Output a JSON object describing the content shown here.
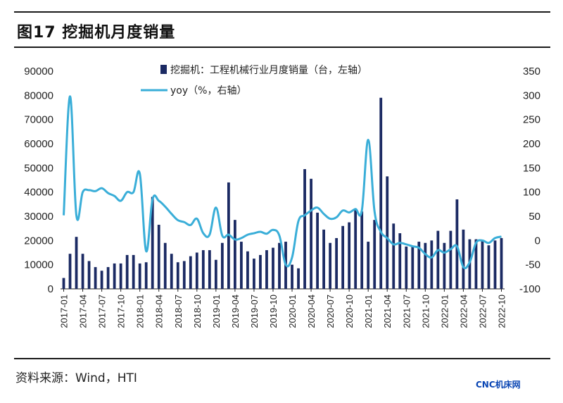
{
  "header": {
    "title": "图17 挖掘机月度销量"
  },
  "footer": {
    "source": "资料来源：Wind，HTI",
    "watermark": "CNC机床网"
  },
  "colors": {
    "bar": "#1b2a63",
    "line": "#3aaed8"
  },
  "chart_data": {
    "type": "bar+line",
    "title": "图17 挖掘机月度销量",
    "x": [
      "2017-01",
      "2017-02",
      "2017-03",
      "2017-04",
      "2017-05",
      "2017-06",
      "2017-07",
      "2017-08",
      "2017-09",
      "2017-10",
      "2017-11",
      "2017-12",
      "2018-01",
      "2018-02",
      "2018-03",
      "2018-04",
      "2018-05",
      "2018-06",
      "2018-07",
      "2018-08",
      "2018-09",
      "2018-10",
      "2018-11",
      "2018-12",
      "2019-01",
      "2019-02",
      "2019-03",
      "2019-04",
      "2019-05",
      "2019-06",
      "2019-07",
      "2019-08",
      "2019-09",
      "2019-10",
      "2019-11",
      "2019-12",
      "2020-01",
      "2020-02",
      "2020-03",
      "2020-04",
      "2020-05",
      "2020-06",
      "2020-07",
      "2020-08",
      "2020-09",
      "2020-10",
      "2020-11",
      "2020-12",
      "2021-01",
      "2021-02",
      "2021-03",
      "2021-04",
      "2021-05",
      "2021-06",
      "2021-07",
      "2021-08",
      "2021-09",
      "2021-10",
      "2021-11",
      "2021-12",
      "2022-01",
      "2022-02",
      "2022-03",
      "2022-04",
      "2022-05",
      "2022-06",
      "2022-07",
      "2022-08",
      "2022-09",
      "2022-10"
    ],
    "x_tick_labels": [
      "2017-01",
      "2017-04",
      "2017-07",
      "2017-10",
      "2018-01",
      "2018-04",
      "2018-07",
      "2018-10",
      "2019-01",
      "2019-04",
      "2019-07",
      "2019-10",
      "2020-01",
      "2020-04",
      "2020-07",
      "2020-10",
      "2021-01",
      "2021-04",
      "2021-07",
      "2021-10",
      "2022-01",
      "2022-04",
      "2022-07",
      "2022-10"
    ],
    "left_axis": {
      "ylim": [
        0,
        90000
      ],
      "ticks": [
        "0",
        "10000",
        "20000",
        "30000",
        "40000",
        "50000",
        "60000",
        "70000",
        "80000",
        "90000"
      ]
    },
    "right_axis": {
      "ylim": [
        -100,
        350
      ],
      "ticks": [
        "-100",
        "-50",
        "0",
        "50",
        "100",
        "150",
        "200",
        "250",
        "300",
        "350"
      ]
    },
    "series": [
      {
        "name": "挖掘机：工程机械行业月度销量（台，左轴）",
        "type": "bar",
        "axis": "left",
        "values": [
          4500,
          14500,
          21500,
          14500,
          11500,
          9000,
          7500,
          9000,
          10500,
          10500,
          14000,
          14000,
          10500,
          11000,
          38000,
          26500,
          19000,
          14500,
          11000,
          11500,
          13500,
          15000,
          16000,
          16000,
          12000,
          19000,
          44000,
          28500,
          19500,
          15500,
          12500,
          14000,
          16000,
          17000,
          19000,
          19500,
          10000,
          8500,
          49500,
          45500,
          31500,
          24500,
          19000,
          21000,
          26000,
          27500,
          32500,
          32000,
          19500,
          28500,
          79000,
          46500,
          27000,
          23000,
          17500,
          17500,
          19500,
          19000,
          20000,
          24000,
          19000,
          24000,
          37000,
          24500,
          20500,
          20500,
          20000,
          18000,
          20000,
          21000
        ]
      },
      {
        "name": "yoy（%，右轴）",
        "type": "line",
        "axis": "right",
        "values": [
          52,
          298,
          52,
          100,
          104,
          102,
          108,
          98,
          92,
          82,
          100,
          100,
          138,
          -22,
          85,
          82,
          70,
          55,
          42,
          38,
          32,
          45,
          15,
          12,
          68,
          10,
          12,
          2,
          5,
          12,
          15,
          18,
          14,
          22,
          10,
          -50,
          -35,
          40,
          52,
          62,
          68,
          55,
          45,
          48,
          62,
          58,
          65,
          62,
          208,
          60,
          18,
          5,
          -8,
          -5,
          -8,
          -12,
          -15,
          -28,
          -35,
          -20,
          -25,
          -18,
          -12,
          -55,
          -45,
          -5,
          0,
          -5,
          5,
          8
        ]
      }
    ]
  }
}
